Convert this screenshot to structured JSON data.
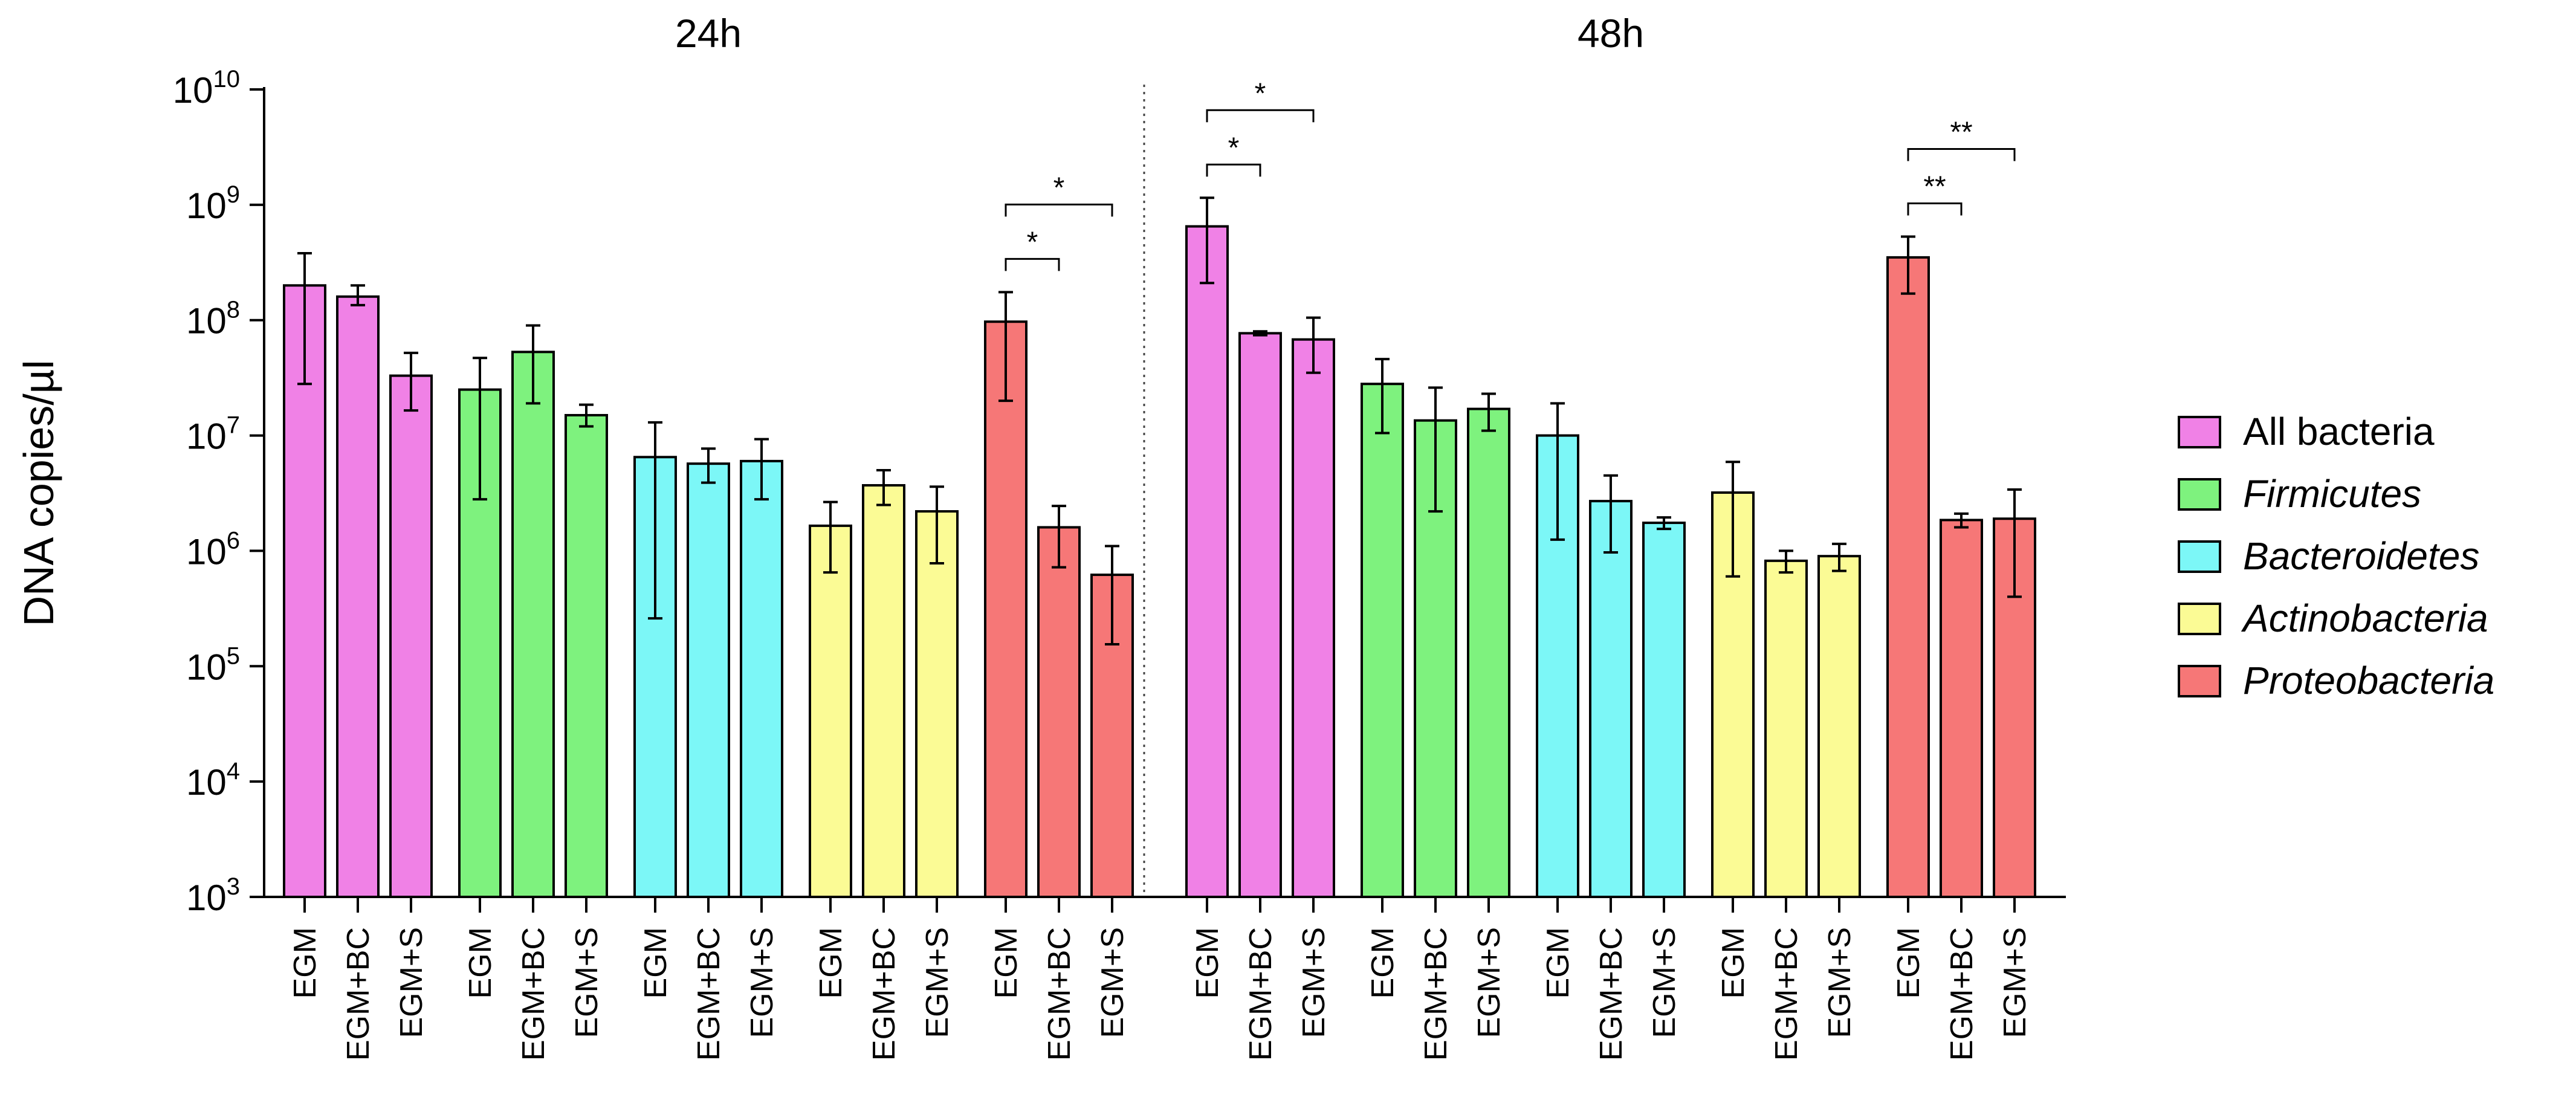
{
  "chart_data": {
    "type": "bar",
    "ylabel": "DNA copies/µl",
    "yscale": "log10",
    "ylim": [
      1000,
      10000000000
    ],
    "yticks": [
      {
        "value": 1000,
        "base": "10",
        "exp": "3"
      },
      {
        "value": 10000,
        "base": "10",
        "exp": "4"
      },
      {
        "value": 100000,
        "base": "10",
        "exp": "5"
      },
      {
        "value": 1000000,
        "base": "10",
        "exp": "6"
      },
      {
        "value": 10000000,
        "base": "10",
        "exp": "7"
      },
      {
        "value": 100000000,
        "base": "10",
        "exp": "8"
      },
      {
        "value": 1000000000,
        "base": "10",
        "exp": "9"
      },
      {
        "value": 10000000000,
        "base": "10",
        "exp": "10"
      }
    ],
    "categories": [
      "EGM",
      "EGM+BC",
      "EGM+S"
    ],
    "panels": [
      {
        "title": "24h",
        "groups": [
          {
            "series": "All bacteria",
            "values": [
              200000000.0,
              160000000.0,
              33000000.0
            ],
            "err_low": [
              28000000.0,
              135000000.0,
              16500000.0
            ],
            "err_high": [
              380000000.0,
              200000000.0,
              52000000.0
            ]
          },
          {
            "series": "Firmicutes",
            "values": [
              25000000.0,
              53000000.0,
              15000000.0
            ],
            "err_low": [
              2800000.0,
              19000000.0,
              12000000.0
            ],
            "err_high": [
              47000000.0,
              90000000.0,
              18500000.0
            ]
          },
          {
            "series": "Bacteroidetes",
            "values": [
              6500000.0,
              5700000.0,
              6000000.0
            ],
            "err_low": [
              260000.0,
              3900000.0,
              2800000.0
            ],
            "err_high": [
              13000000.0,
              7700000.0,
              9300000.0
            ]
          },
          {
            "series": "Actinobacteria",
            "values": [
              1650000.0,
              3700000.0,
              2200000.0
            ],
            "err_low": [
              650000.0,
              2500000.0,
              780000.0
            ],
            "err_high": [
              2650000.0,
              5000000.0,
              3600000.0
            ]
          },
          {
            "series": "Proteobacteria",
            "values": [
              97000000.0,
              1600000.0,
              620000.0
            ],
            "err_low": [
              20000000.0,
              720000.0,
              155000.0
            ],
            "err_high": [
              175000000.0,
              2450000.0,
              1100000.0
            ]
          }
        ],
        "significance": [
          {
            "series": "Proteobacteria",
            "from": "EGM",
            "to": "EGM+BC",
            "label": "*"
          },
          {
            "series": "Proteobacteria",
            "from": "EGM",
            "to": "EGM+S",
            "label": "*"
          }
        ]
      },
      {
        "title": "48h",
        "groups": [
          {
            "series": "All bacteria",
            "values": [
              650000000.0,
              77000000.0,
              68000000.0
            ],
            "err_low": [
              210000000.0,
              74000000.0,
              35000000.0
            ],
            "err_high": [
              1150000000.0,
              80000000.0,
              105000000.0
            ]
          },
          {
            "series": "Firmicutes",
            "values": [
              28000000.0,
              13500000.0,
              17000000.0
            ],
            "err_low": [
              10500000.0,
              2200000.0,
              11000000.0
            ],
            "err_high": [
              46000000.0,
              26000000.0,
              23000000.0
            ]
          },
          {
            "series": "Bacteroidetes",
            "values": [
              10000000.0,
              2700000.0,
              1750000.0
            ],
            "err_low": [
              1250000.0,
              970000.0,
              1550000.0
            ],
            "err_high": [
              19000000.0,
              4500000.0,
              1950000.0
            ]
          },
          {
            "series": "Actinobacteria",
            "values": [
              3200000.0,
              820000.0,
              900000.0
            ],
            "err_low": [
              600000.0,
              650000.0,
              670000.0
            ],
            "err_high": [
              5900000.0,
              1000000.0,
              1150000.0
            ]
          },
          {
            "series": "Proteobacteria",
            "values": [
              350000000.0,
              1850000.0,
              1900000.0
            ],
            "err_low": [
              170000000.0,
              1600000.0,
              400000.0
            ],
            "err_high": [
              530000000.0,
              2100000.0,
              3400000.0
            ]
          }
        ],
        "significance": [
          {
            "series": "All bacteria",
            "from": "EGM",
            "to": "EGM+BC",
            "label": "*"
          },
          {
            "series": "All bacteria",
            "from": "EGM",
            "to": "EGM+S",
            "label": "*"
          },
          {
            "series": "Proteobacteria",
            "from": "EGM",
            "to": "EGM+BC",
            "label": "**"
          },
          {
            "series": "Proteobacteria",
            "from": "EGM",
            "to": "EGM+S",
            "label": "**"
          }
        ]
      }
    ],
    "series": [
      {
        "name": "All bacteria",
        "color": "#f081e6",
        "italic": false
      },
      {
        "name": "Firmicutes",
        "color": "#7ef27e",
        "italic": true
      },
      {
        "name": "Bacteroidetes",
        "color": "#7cf7f7",
        "italic": true
      },
      {
        "name": "Actinobacteria",
        "color": "#fbfb95",
        "italic": true
      },
      {
        "name": "Proteobacteria",
        "color": "#f67777",
        "italic": true
      }
    ],
    "legend_position": "right"
  }
}
